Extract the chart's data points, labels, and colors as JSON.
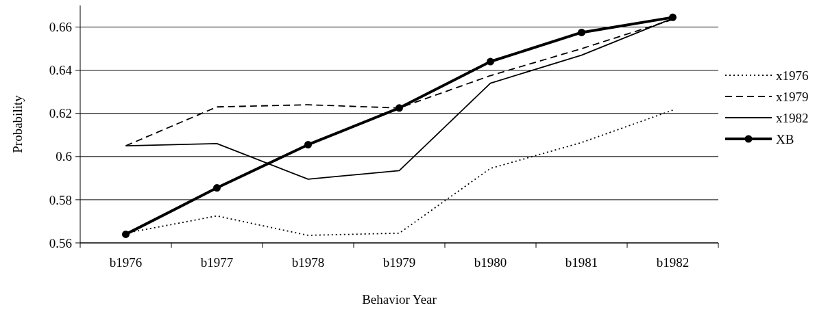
{
  "chart_data": {
    "type": "line",
    "xlabel": "Behavior Year",
    "ylabel": "Probability",
    "categories": [
      "b1976",
      "b1977",
      "b1978",
      "b1979",
      "b1980",
      "b1981",
      "b1982"
    ],
    "series": [
      {
        "name": "x1976",
        "color": "#000000",
        "line_style": "dotted",
        "marker": "none",
        "values": [
          0.5645,
          0.5725,
          0.5635,
          0.5645,
          0.5945,
          0.6065,
          0.6215
        ]
      },
      {
        "name": "x1979",
        "color": "#000000",
        "line_style": "dashed",
        "marker": "none",
        "values": [
          0.605,
          0.623,
          0.624,
          0.6225,
          0.6375,
          0.65,
          0.6635
        ]
      },
      {
        "name": "x1982",
        "color": "#000000",
        "line_style": "solid",
        "marker": "none",
        "values": [
          0.605,
          0.606,
          0.5895,
          0.5935,
          0.634,
          0.647,
          0.664
        ]
      },
      {
        "name": "XB",
        "color": "#000000",
        "line_style": "solid",
        "marker": "circle",
        "values": [
          0.564,
          0.5855,
          0.6055,
          0.6225,
          0.644,
          0.6575,
          0.6645
        ]
      }
    ],
    "ylim": [
      0.56,
      0.67
    ],
    "yticks": [
      0.56,
      0.58,
      0.6,
      0.62,
      0.64,
      0.66
    ],
    "grid": "y",
    "legend": "right"
  }
}
